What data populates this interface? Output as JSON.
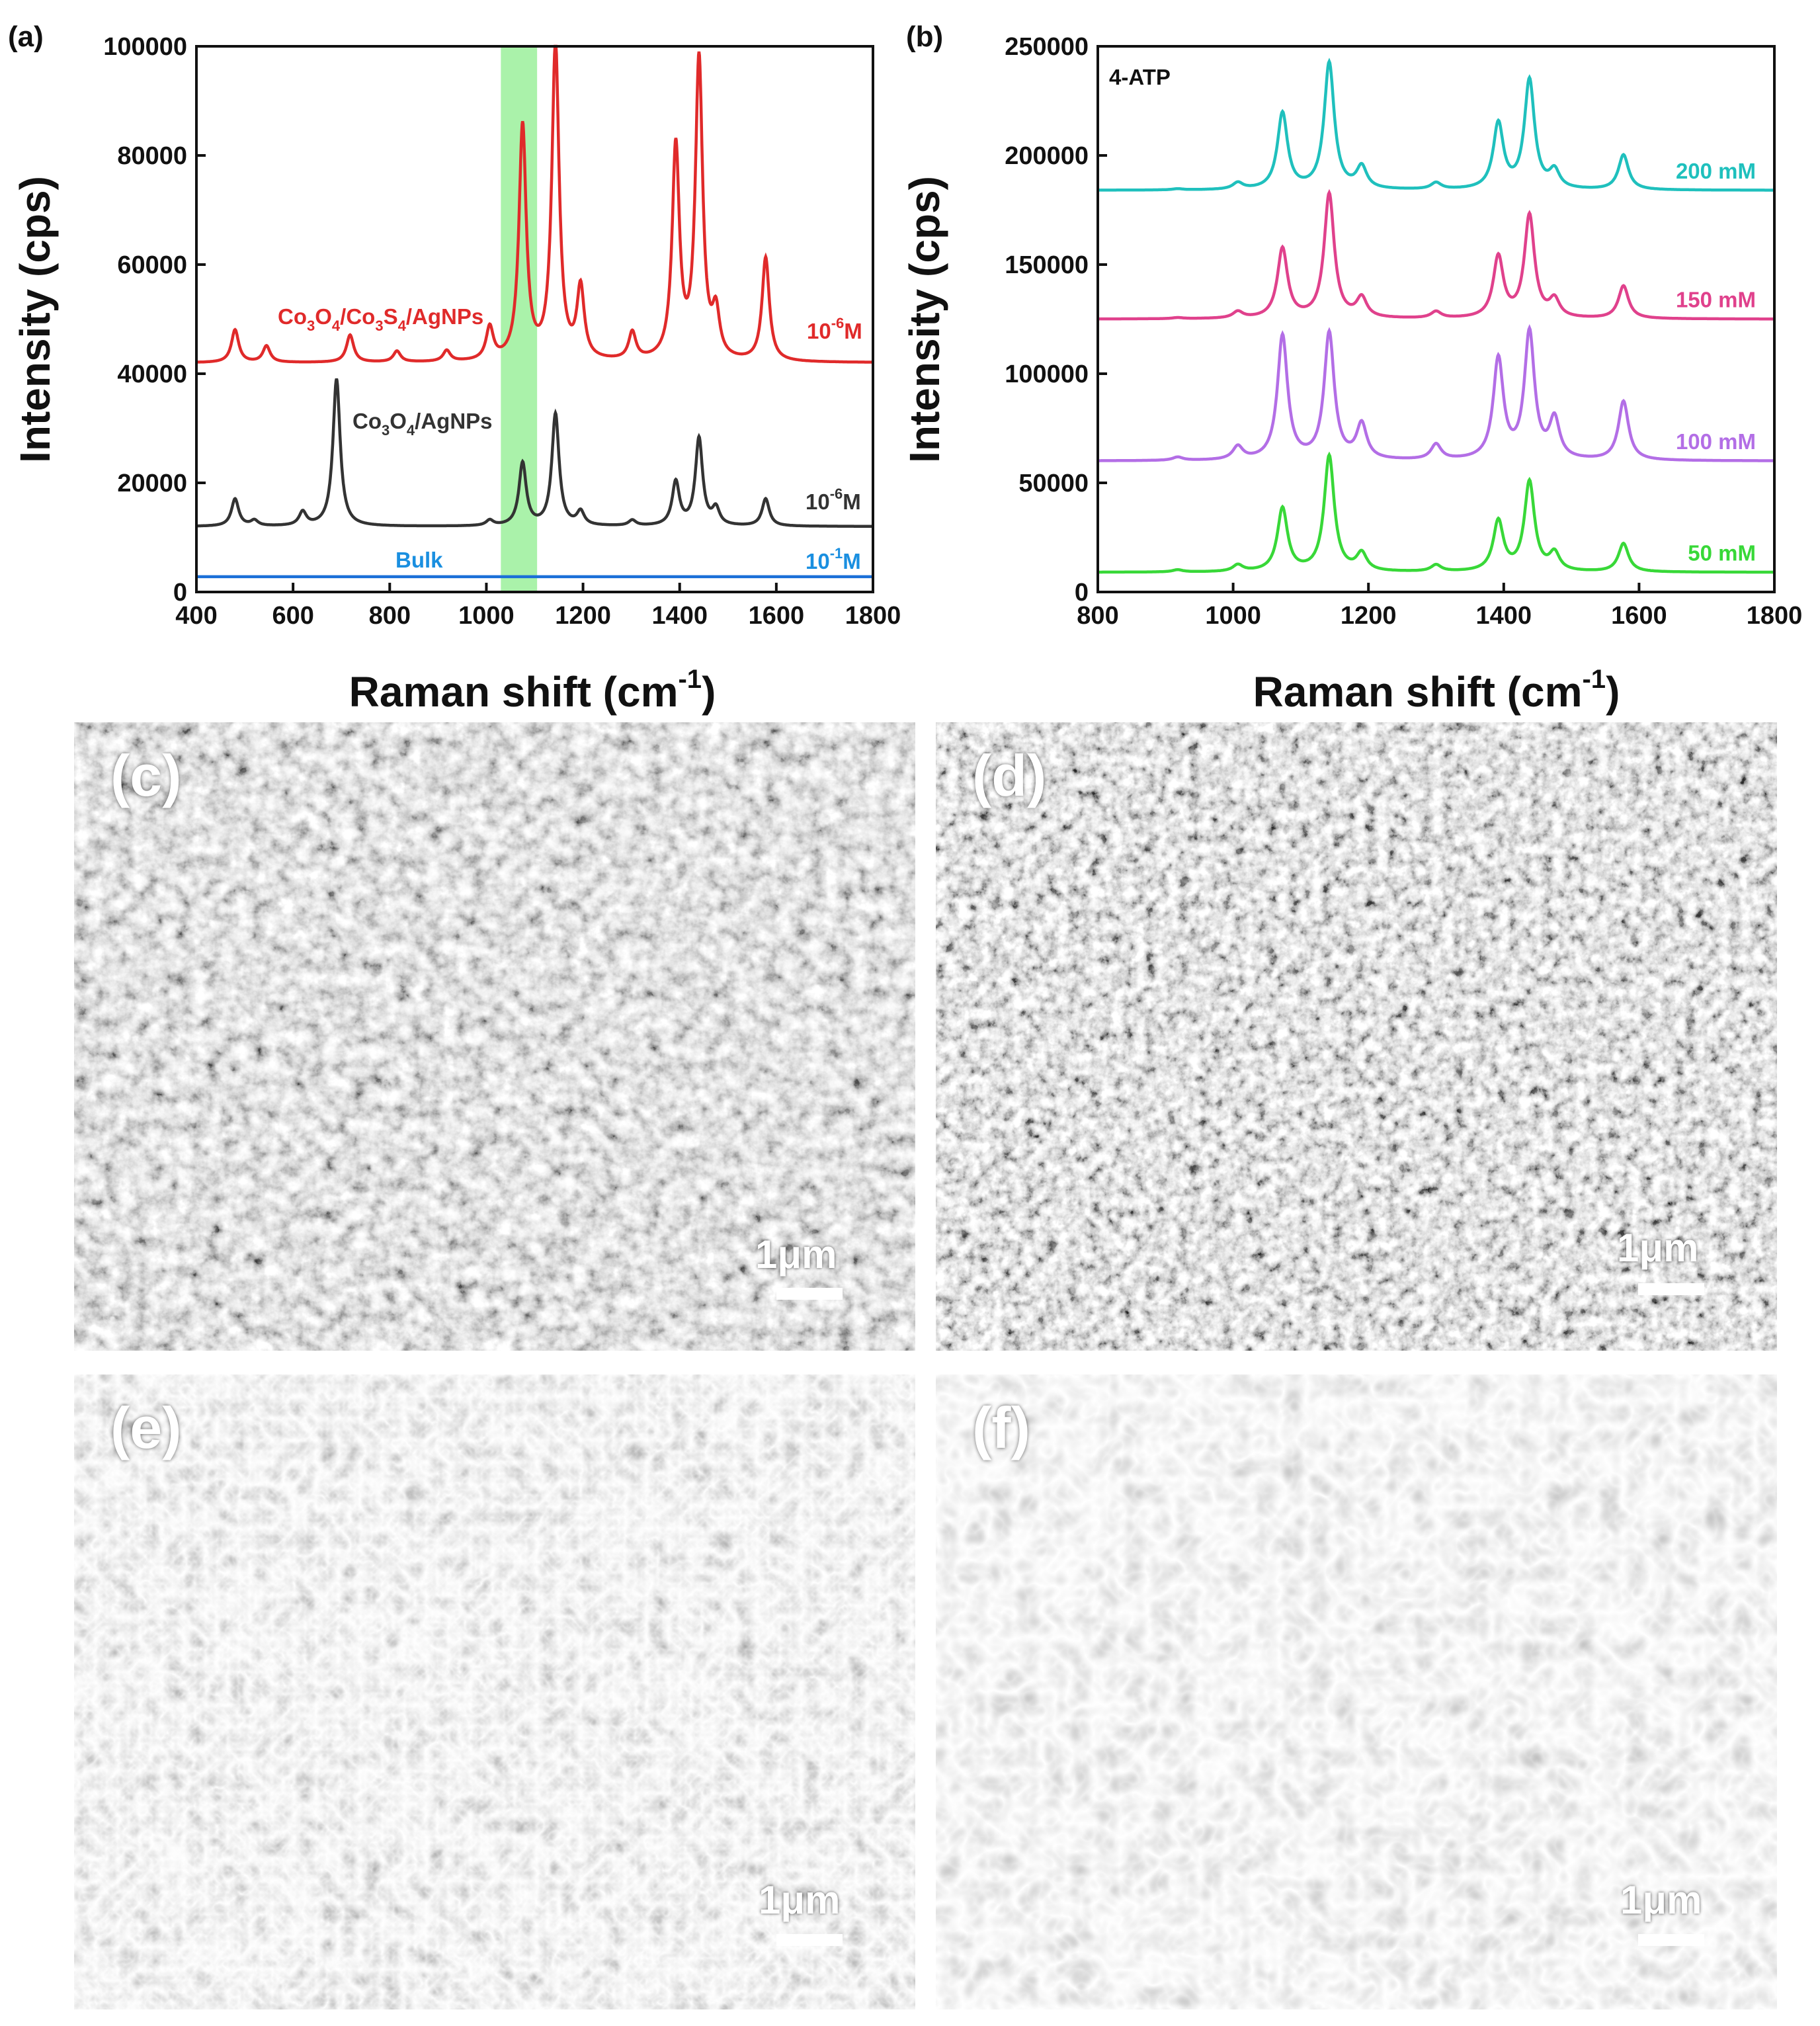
{
  "chart_data": [
    {
      "panel": "(a)",
      "type": "line",
      "ylabel": "Intensity (cps)",
      "xlabel": "Raman shift (cm-1)",
      "xlim": [
        400,
        1800
      ],
      "ylim": [
        0,
        100000
      ],
      "xticks": [
        400,
        600,
        800,
        1000,
        1200,
        1400,
        1600,
        1800
      ],
      "yticks": [
        0,
        20000,
        40000,
        60000,
        80000,
        100000
      ],
      "highlight_band": [
        1030,
        1105
      ],
      "highlight_color": "#aaf2aa",
      "series": [
        {
          "name": "Co3O4/Co3S4/AgNPs",
          "concentration": "10-6M",
          "color": "#e02a2a",
          "baseline": 42000,
          "peaks": [
            [
              480,
              6000
            ],
            [
              545,
              3000
            ],
            [
              718,
              5000
            ],
            [
              815,
              2000
            ],
            [
              918,
              2000
            ],
            [
              1007,
              6000
            ],
            [
              1075,
              43000
            ],
            [
              1143,
              58000
            ],
            [
              1195,
              13000
            ],
            [
              1302,
              5000
            ],
            [
              1392,
              39000
            ],
            [
              1440,
              55000
            ],
            [
              1475,
              8000
            ],
            [
              1578,
              19000
            ]
          ]
        },
        {
          "name": "Co3O4/AgNPs",
          "concentration": "10-6M",
          "color": "#333333",
          "baseline": 12000,
          "peaks": [
            [
              480,
              5000
            ],
            [
              520,
              1000
            ],
            [
              620,
              2500
            ],
            [
              690,
              27000
            ],
            [
              1007,
              1000
            ],
            [
              1075,
              11500
            ],
            [
              1143,
              20500
            ],
            [
              1195,
              2500
            ],
            [
              1302,
              1000
            ],
            [
              1392,
              8000
            ],
            [
              1440,
              16000
            ],
            [
              1475,
              3000
            ],
            [
              1578,
              5000
            ]
          ]
        },
        {
          "name": "Bulk",
          "concentration": "10-1M",
          "color": "#1a6fd8",
          "baseline": 2800,
          "peaks": []
        }
      ]
    },
    {
      "panel": "(b)",
      "type": "line",
      "title": "4-ATP",
      "ylabel": "Intensity (cps)",
      "xlabel": "Raman shift (cm-1)",
      "xlim": [
        800,
        1800
      ],
      "ylim": [
        0,
        250000
      ],
      "xticks": [
        800,
        1000,
        1200,
        1400,
        1600,
        1800
      ],
      "yticks": [
        0,
        50000,
        100000,
        150000,
        200000,
        250000
      ],
      "series": [
        {
          "name": "200 mM",
          "color": "#1fc0bd",
          "baseline": 184000,
          "peaks": [
            [
              918,
              500
            ],
            [
              1007,
              3000
            ],
            [
              1073,
              35000
            ],
            [
              1142,
              58000
            ],
            [
              1190,
              10000
            ],
            [
              1300,
              3000
            ],
            [
              1392,
              30000
            ],
            [
              1438,
              50000
            ],
            [
              1475,
              8000
            ],
            [
              1577,
              16000
            ]
          ]
        },
        {
          "name": "150 mM",
          "color": "#e0418c",
          "baseline": 125000,
          "peaks": [
            [
              918,
              500
            ],
            [
              1007,
              3000
            ],
            [
              1073,
              32000
            ],
            [
              1142,
              57000
            ],
            [
              1190,
              9000
            ],
            [
              1300,
              3000
            ],
            [
              1392,
              28000
            ],
            [
              1438,
              47000
            ],
            [
              1475,
              8000
            ],
            [
              1577,
              15000
            ]
          ]
        },
        {
          "name": "100 mM",
          "color": "#b36ee6",
          "baseline": 60000,
          "peaks": [
            [
              918,
              1500
            ],
            [
              1007,
              6000
            ],
            [
              1073,
              57000
            ],
            [
              1142,
              58000
            ],
            [
              1190,
              16000
            ],
            [
              1300,
              7000
            ],
            [
              1392,
              46000
            ],
            [
              1438,
              58000
            ],
            [
              1475,
              18000
            ],
            [
              1577,
              27000
            ]
          ]
        },
        {
          "name": "50 mM",
          "color": "#38d838",
          "baseline": 9000,
          "peaks": [
            [
              918,
              1000
            ],
            [
              1007,
              3000
            ],
            [
              1073,
              29000
            ],
            [
              1142,
              53000
            ],
            [
              1190,
              8000
            ],
            [
              1300,
              3000
            ],
            [
              1392,
              23000
            ],
            [
              1438,
              41000
            ],
            [
              1475,
              8000
            ],
            [
              1577,
              13000
            ]
          ]
        }
      ]
    }
  ],
  "sem_panels": [
    {
      "label": "(c)",
      "scale": "1μm"
    },
    {
      "label": "(d)",
      "scale": "1μm"
    },
    {
      "label": "(e)",
      "scale": "1μm"
    },
    {
      "label": "(f)",
      "scale": "1μm"
    }
  ]
}
